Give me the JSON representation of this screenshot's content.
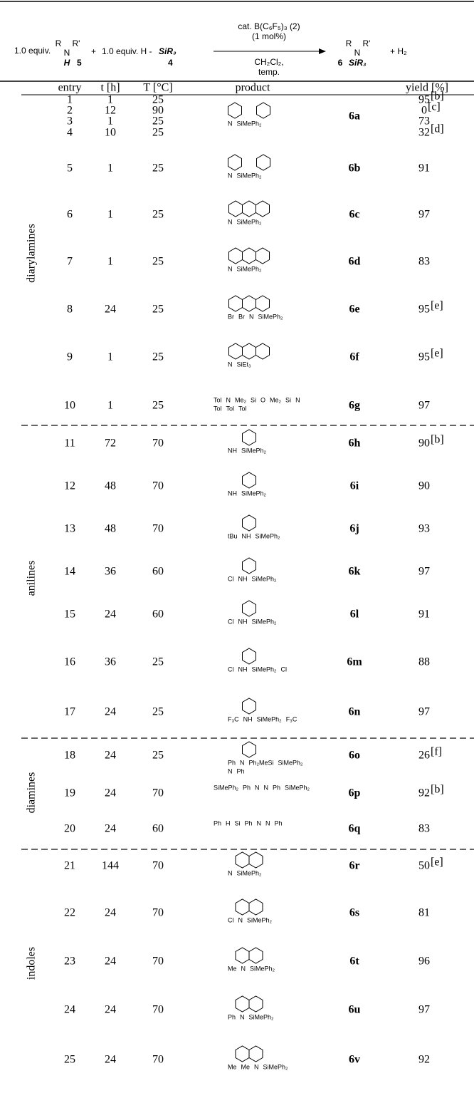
{
  "scheme": {
    "equiv1": "1.0 equiv.",
    "amine": [
      "R",
      "N",
      "R'",
      "H",
      "5"
    ],
    "plus": "+",
    "equiv2": "1.0 equiv. H -",
    "silane": "SiR₃",
    "silane_no": "4",
    "conditions": [
      "cat. B(C₆F₅)₃ (2)",
      "(1 mol%)",
      "CH₂Cl₂,",
      "temp."
    ],
    "product": [
      "R",
      "N",
      "R'",
      "6",
      "SiR₃"
    ],
    "byproduct": "+ H₂"
  },
  "table": {
    "headers": [
      "entry",
      "t [h]",
      "T [°C]",
      "product",
      "yield [%]"
    ],
    "groups": [
      "diarylamines",
      "anilines",
      "diamines",
      "indoles"
    ],
    "rows": [
      {
        "entry": 1,
        "t": 1,
        "T": 25,
        "yield": 95,
        "note": "[b]"
      },
      {
        "entry": 2,
        "t": 12,
        "T": 90,
        "yield": 0,
        "note": "[c]"
      },
      {
        "entry": 3,
        "t": 1,
        "T": 25,
        "yield": 73
      },
      {
        "entry": 4,
        "t": 10,
        "T": 25,
        "yield": 32,
        "note": "[d]"
      },
      {
        "entry": 5,
        "t": 1,
        "T": 25,
        "yield": 91
      },
      {
        "entry": 6,
        "t": 1,
        "T": 25,
        "yield": 97
      },
      {
        "entry": 7,
        "t": 1,
        "T": 25,
        "yield": 83
      },
      {
        "entry": 8,
        "t": 24,
        "T": 25,
        "yield": 95,
        "note": "[e]"
      },
      {
        "entry": 9,
        "t": 1,
        "T": 25,
        "yield": 95,
        "note": "[e]"
      },
      {
        "entry": 10,
        "t": 1,
        "T": 25,
        "yield": 97
      },
      {
        "entry": 11,
        "t": 72,
        "T": 70,
        "yield": 90,
        "note": "[b]"
      },
      {
        "entry": 12,
        "t": 48,
        "T": 70,
        "yield": 90
      },
      {
        "entry": 13,
        "t": 48,
        "T": 70,
        "yield": 93
      },
      {
        "entry": 14,
        "t": 36,
        "T": 60,
        "yield": 97
      },
      {
        "entry": 15,
        "t": 24,
        "T": 60,
        "yield": 91
      },
      {
        "entry": 16,
        "t": 36,
        "T": 25,
        "yield": 88
      },
      {
        "entry": 17,
        "t": 24,
        "T": 25,
        "yield": 97
      },
      {
        "entry": 18,
        "t": 24,
        "T": 25,
        "yield": 26,
        "note": "[f]"
      },
      {
        "entry": 19,
        "t": 24,
        "T": 70,
        "yield": 92,
        "note": "[b]"
      },
      {
        "entry": 20,
        "t": 24,
        "T": 60,
        "yield": 83
      },
      {
        "entry": 21,
        "t": 144,
        "T": 70,
        "yield": 50,
        "note": "[e]"
      },
      {
        "entry": 22,
        "t": 24,
        "T": 70,
        "yield": 81
      },
      {
        "entry": 23,
        "t": 24,
        "T": 70,
        "yield": 96
      },
      {
        "entry": 24,
        "t": 24,
        "T": 70,
        "yield": 97
      },
      {
        "entry": 25,
        "t": 24,
        "T": 70,
        "yield": 92
      }
    ],
    "products": [
      {
        "label": "6a",
        "atoms": [
          "N",
          "SiMePh₂"
        ]
      },
      {
        "label": "6b",
        "atoms": [
          "N",
          "SiMePh₂"
        ]
      },
      {
        "label": "6c",
        "atoms": [
          "N",
          "SiMePh₂"
        ]
      },
      {
        "label": "6d",
        "atoms": [
          "N",
          "SiMePh₂"
        ]
      },
      {
        "label": "6e",
        "atoms": [
          "Br",
          "Br",
          "N",
          "SiMePh₂"
        ]
      },
      {
        "label": "6f",
        "atoms": [
          "N",
          "SiEt₃"
        ]
      },
      {
        "label": "6g",
        "atoms": [
          "Tol",
          "N",
          "Me₂",
          "Si",
          "O",
          "Me₂",
          "Si",
          "N",
          "Tol",
          "Tol",
          "Tol"
        ]
      },
      {
        "label": "6h",
        "atoms": [
          "NH",
          "SiMePh₂"
        ]
      },
      {
        "label": "6i",
        "atoms": [
          "NH",
          "SiMePh₂"
        ]
      },
      {
        "label": "6j",
        "atoms": [
          "tBu",
          "NH",
          "SiMePh₂"
        ]
      },
      {
        "label": "6k",
        "atoms": [
          "Cl",
          "NH",
          "SiMePh₂"
        ]
      },
      {
        "label": "6l",
        "atoms": [
          "Cl",
          "NH",
          "SiMePh₂"
        ]
      },
      {
        "label": "6m",
        "atoms": [
          "Cl",
          "NH",
          "SiMePh₂",
          "Cl"
        ]
      },
      {
        "label": "6n",
        "atoms": [
          "F₃C",
          "NH",
          "SiMePh₂",
          "F₃C"
        ]
      },
      {
        "label": "6o",
        "atoms": [
          "Ph",
          "N",
          "Ph₂MeSi",
          "SiMePh₂",
          "N",
          "Ph"
        ]
      },
      {
        "label": "6p",
        "atoms": [
          "SiMePh₂",
          "Ph",
          "N",
          "N",
          "Ph",
          "SiMePh₂"
        ]
      },
      {
        "label": "6q",
        "atoms": [
          "Ph",
          "H",
          "Si",
          "Ph",
          "N",
          "N",
          "Ph"
        ]
      },
      {
        "label": "6r",
        "atoms": [
          "N",
          "SiMePh₂"
        ]
      },
      {
        "label": "6s",
        "atoms": [
          "Cl",
          "N",
          "SiMePh₂"
        ]
      },
      {
        "label": "6t",
        "atoms": [
          "Me",
          "N",
          "SiMePh₂"
        ]
      },
      {
        "label": "6u",
        "atoms": [
          "Ph",
          "N",
          "SiMePh₂"
        ]
      },
      {
        "label": "6v",
        "atoms": [
          "Me",
          "Me",
          "N",
          "SiMePh₂"
        ]
      }
    ]
  }
}
